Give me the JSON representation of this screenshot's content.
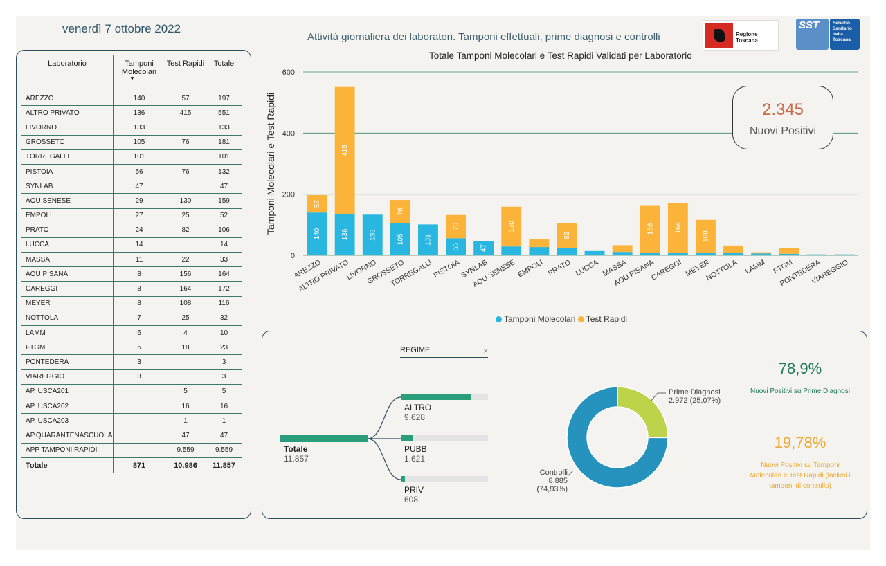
{
  "header": {
    "date": "venerdì 7 ottobre 2022",
    "title": "Attività giornaliera dei laboratori. Tamponi effettuali, prime diagnosi e controlli",
    "logo_rt": "Regione Toscana",
    "logo_sst_short": "SST",
    "logo_sst_full": "Servizio Sanitario della Toscana"
  },
  "table": {
    "headers": [
      "Laboratorio",
      "Tamponi Molecolari",
      "Test Rapidi",
      "Totale"
    ],
    "sort_indicator": "▼",
    "rows": [
      [
        "AREZZO",
        "140",
        "57",
        "197"
      ],
      [
        "ALTRO PRIVATO",
        "136",
        "415",
        "551"
      ],
      [
        "LIVORNO",
        "133",
        "",
        "133"
      ],
      [
        "GROSSETO",
        "105",
        "76",
        "181"
      ],
      [
        "TORREGALLI",
        "101",
        "",
        "101"
      ],
      [
        "PISTOIA",
        "56",
        "76",
        "132"
      ],
      [
        "SYNLAB",
        "47",
        "",
        "47"
      ],
      [
        "AOU SENESE",
        "29",
        "130",
        "159"
      ],
      [
        "EMPOLI",
        "27",
        "25",
        "52"
      ],
      [
        "PRATO",
        "24",
        "82",
        "106"
      ],
      [
        "LUCCA",
        "14",
        "",
        "14"
      ],
      [
        "MASSA",
        "11",
        "22",
        "33"
      ],
      [
        "AOU PISANA",
        "8",
        "156",
        "164"
      ],
      [
        "CAREGGI",
        "8",
        "164",
        "172"
      ],
      [
        "MEYER",
        "8",
        "108",
        "116"
      ],
      [
        "NOTTOLA",
        "7",
        "25",
        "32"
      ],
      [
        "LAMM",
        "6",
        "4",
        "10"
      ],
      [
        "FTGM",
        "5",
        "18",
        "23"
      ],
      [
        "PONTEDERA",
        "3",
        "",
        "3"
      ],
      [
        "VIAREGGIO",
        "3",
        "",
        "3"
      ],
      [
        "AP. USCA201",
        "",
        "5",
        "5"
      ],
      [
        "AP. USCA202",
        "",
        "16",
        "16"
      ],
      [
        "AP. USCA203",
        "",
        "1",
        "1"
      ],
      [
        "AP.QUARANTENASCUOLA",
        "",
        "47",
        "47"
      ],
      [
        "APP TAMPONI RAPIDI",
        "",
        "9.559",
        "9.559"
      ]
    ],
    "total": [
      "Totale",
      "871",
      "10.986",
      "11.857"
    ]
  },
  "chart_data": {
    "type": "bar",
    "stacked": true,
    "title": "Totale Tamponi Molecolari e Test Rapidi Validati per Laboratorio",
    "ylabel": "Tamponi Molecolari e Test Rapidi",
    "ylim": [
      0,
      600
    ],
    "yticks": [
      0,
      200,
      400,
      600
    ],
    "grid": true,
    "legend_position": "bottom",
    "categories": [
      "AREZZO",
      "ALTRO PRIVATO",
      "LIVORNO",
      "GROSSETO",
      "TORREGALLI",
      "PISTOIA",
      "SYNLAB",
      "AOU SENESE",
      "EMPOLI",
      "PRATO",
      "LUCCA",
      "MASSA",
      "AOU PISANA",
      "CAREGGI",
      "MEYER",
      "NOTTOLA",
      "LAMM",
      "FTGM",
      "PONTEDERA",
      "VIAREGGIO"
    ],
    "series": [
      {
        "name": "Tamponi Molecolari",
        "color": "#29b6e0",
        "values": [
          140,
          136,
          133,
          105,
          101,
          56,
          47,
          29,
          27,
          24,
          14,
          11,
          8,
          8,
          8,
          7,
          6,
          5,
          3,
          3
        ]
      },
      {
        "name": "Test Rapidi",
        "color": "#fbb33a",
        "values": [
          57,
          415,
          0,
          76,
          0,
          76,
          0,
          130,
          25,
          82,
          0,
          22,
          156,
          164,
          108,
          25,
          4,
          18,
          0,
          0
        ]
      }
    ],
    "data_label_min": 40
  },
  "kpi": {
    "value": "2.345",
    "label": "Nuovi Positivi"
  },
  "regime": {
    "filter_label": "REGIME",
    "clear": "×",
    "total_label": "Totale",
    "total_value": "11.857",
    "total": 11857,
    "items": [
      {
        "label": "ALTRO",
        "value": "9.628",
        "amount": 9628
      },
      {
        "label": "PUBB",
        "value": "1.621",
        "amount": 1621
      },
      {
        "label": "PRIV",
        "value": "608",
        "amount": 608
      }
    ]
  },
  "donut": {
    "slices": [
      {
        "name": "Prime Diagnosi",
        "value_text": "2.972 (25,07%)",
        "percent": 25.07,
        "color": "#bcd34a"
      },
      {
        "name": "Controlli",
        "value_text": "8.885 (74,93%)",
        "percent": 74.93,
        "color": "#2593bd"
      }
    ]
  },
  "ratios": [
    {
      "value": "78,9%",
      "label": "Nuovi Positivi su Prime Diagnosi",
      "color": "#1f7a54"
    },
    {
      "value": "19,78%",
      "label": "Nuovi Positivi su Tamponi Molecolari e Test Rapidi (inclusi i tamponi di controllo)",
      "color": "#f0a830"
    }
  ]
}
